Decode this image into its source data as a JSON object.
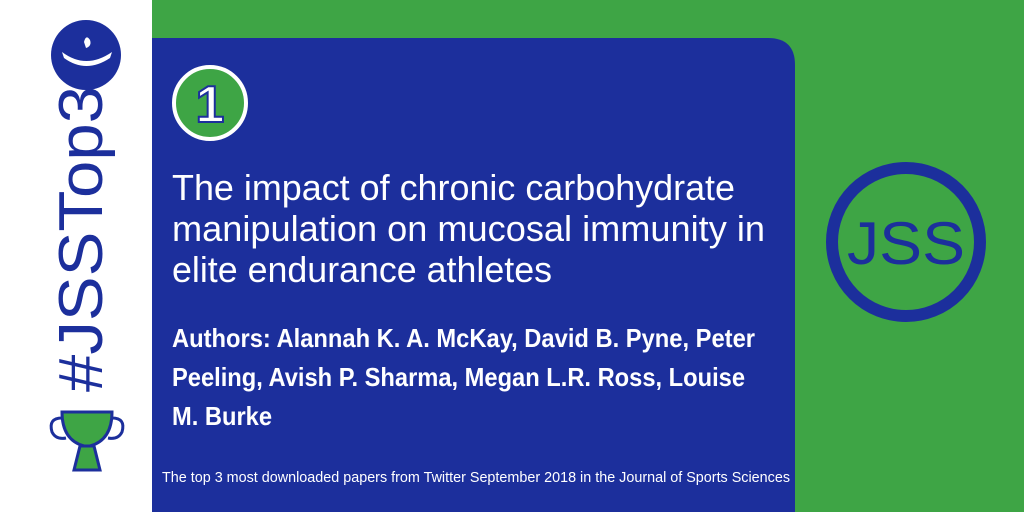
{
  "sidebar": {
    "hashtag": "#JSSTop3"
  },
  "card": {
    "rank": "1",
    "title_lines": [
      "The impact of chronic carbohydrate",
      "manipulation on mucosal immunity in",
      "elite endurance athletes"
    ],
    "author_lines": [
      "Authors: Alannah K. A. McKay, David B. Pyne, Peter",
      "Peeling, Avish P. Sharma, Megan L.R. Ross, Louise",
      "M. Burke"
    ],
    "footer": "The top 3 most downloaded papers from Twitter September 2018 in the Journal of Sports Sciences"
  },
  "badge": {
    "label": "JSS"
  }
}
